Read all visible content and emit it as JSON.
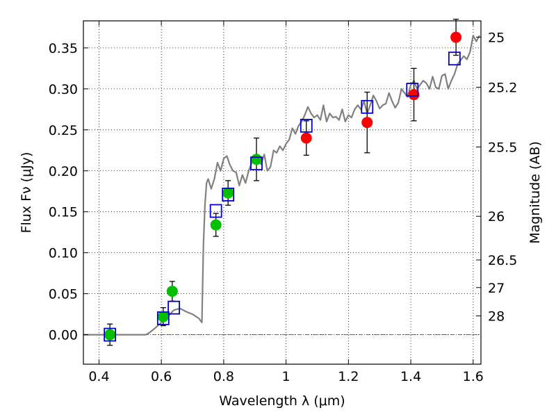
{
  "chart_data": {
    "type": "scatter",
    "xlabel": "Wavelength  λ (μm)",
    "ylabel": "Flux  Fν  (μJy)",
    "y2label": "Magnitude (AB)",
    "xlim": [
      0.35,
      1.625
    ],
    "ylim": [
      -0.036,
      0.383
    ],
    "x_ticks": [
      0.4,
      0.6,
      0.8,
      1.0,
      1.2,
      1.4,
      1.6
    ],
    "x_tick_labels": [
      "0.4",
      "0.6",
      "0.8",
      "1",
      "1.2",
      "1.4",
      "1.6"
    ],
    "y_ticks": [
      0.0,
      0.05,
      0.1,
      0.15,
      0.2,
      0.25,
      0.3,
      0.35
    ],
    "y_tick_labels": [
      "0.00",
      "0.05",
      "0.10",
      "0.15",
      "0.20",
      "0.25",
      "0.30",
      "0.35"
    ],
    "y2_ticks": [
      {
        "label": "25",
        "flux": 0.3631
      },
      {
        "label": "25.2",
        "flux": 0.302
      },
      {
        "label": "25.5",
        "flux": 0.2291
      },
      {
        "label": "26",
        "flux": 0.1445
      },
      {
        "label": "26.5",
        "flux": 0.0912
      },
      {
        "label": "27",
        "flux": 0.0575
      },
      {
        "label": "28",
        "flux": 0.0229
      }
    ],
    "grid": true,
    "zero_line": 0.0,
    "model_spectrum": {
      "color": "#808080",
      "x": [
        0.35,
        0.55,
        0.56,
        0.58,
        0.6,
        0.62,
        0.64,
        0.66,
        0.68,
        0.7,
        0.72,
        0.73,
        0.735,
        0.74,
        0.745,
        0.75,
        0.76,
        0.77,
        0.78,
        0.79,
        0.8,
        0.81,
        0.82,
        0.83,
        0.84,
        0.85,
        0.86,
        0.87,
        0.88,
        0.89,
        0.9,
        0.91,
        0.92,
        0.93,
        0.94,
        0.95,
        0.96,
        0.97,
        0.98,
        0.99,
        1.0,
        1.01,
        1.02,
        1.03,
        1.04,
        1.05,
        1.06,
        1.07,
        1.08,
        1.09,
        1.1,
        1.11,
        1.12,
        1.13,
        1.14,
        1.15,
        1.16,
        1.17,
        1.18,
        1.19,
        1.2,
        1.21,
        1.22,
        1.23,
        1.24,
        1.25,
        1.26,
        1.27,
        1.28,
        1.29,
        1.3,
        1.31,
        1.32,
        1.33,
        1.34,
        1.35,
        1.36,
        1.37,
        1.38,
        1.39,
        1.4,
        1.41,
        1.42,
        1.43,
        1.44,
        1.45,
        1.46,
        1.47,
        1.48,
        1.49,
        1.5,
        1.51,
        1.52,
        1.53,
        1.54,
        1.55,
        1.56,
        1.57,
        1.58,
        1.59,
        1.6,
        1.61,
        1.62
      ],
      "y": [
        0.0,
        0.0,
        0.002,
        0.008,
        0.015,
        0.022,
        0.03,
        0.032,
        0.028,
        0.025,
        0.02,
        0.015,
        0.11,
        0.16,
        0.185,
        0.19,
        0.178,
        0.19,
        0.21,
        0.2,
        0.215,
        0.218,
        0.207,
        0.2,
        0.198,
        0.182,
        0.195,
        0.185,
        0.2,
        0.21,
        0.212,
        0.213,
        0.208,
        0.22,
        0.2,
        0.205,
        0.225,
        0.222,
        0.23,
        0.225,
        0.233,
        0.238,
        0.252,
        0.245,
        0.255,
        0.26,
        0.268,
        0.278,
        0.27,
        0.265,
        0.268,
        0.262,
        0.28,
        0.26,
        0.27,
        0.265,
        0.266,
        0.262,
        0.275,
        0.26,
        0.268,
        0.265,
        0.275,
        0.28,
        0.275,
        0.285,
        0.27,
        0.28,
        0.292,
        0.285,
        0.276,
        0.28,
        0.282,
        0.295,
        0.285,
        0.277,
        0.283,
        0.3,
        0.295,
        0.29,
        0.305,
        0.31,
        0.3,
        0.305,
        0.31,
        0.307,
        0.3,
        0.315,
        0.302,
        0.3,
        0.316,
        0.318,
        0.3,
        0.31,
        0.318,
        0.33,
        0.335,
        0.34,
        0.336,
        0.345,
        0.365,
        0.358,
        0.365
      ]
    },
    "series": [
      {
        "marker": "circle",
        "color": "#00c000",
        "x": [
          0.435,
          0.606,
          0.635,
          0.775,
          0.814,
          0.905
        ],
        "y": [
          0.0,
          0.022,
          0.053,
          0.134,
          0.173,
          0.214
        ],
        "yerr": [
          0.013,
          0.011,
          0.012,
          0.014,
          0.015,
          0.026
        ]
      },
      {
        "marker": "circle",
        "color": "#ff0000",
        "x": [
          1.065,
          1.26,
          1.41,
          1.545
        ],
        "y": [
          0.24,
          0.259,
          0.293,
          0.363
        ],
        "yerr": [
          0.021,
          0.037,
          0.032,
          0.022
        ]
      },
      {
        "marker": "square",
        "color": "#0000cc",
        "x": [
          0.435,
          0.606,
          0.64,
          0.775,
          0.814,
          0.905,
          1.065,
          1.26,
          1.405,
          1.54
        ],
        "y": [
          0.0,
          0.02,
          0.033,
          0.151,
          0.171,
          0.209,
          0.255,
          0.278,
          0.299,
          0.337
        ]
      }
    ]
  }
}
